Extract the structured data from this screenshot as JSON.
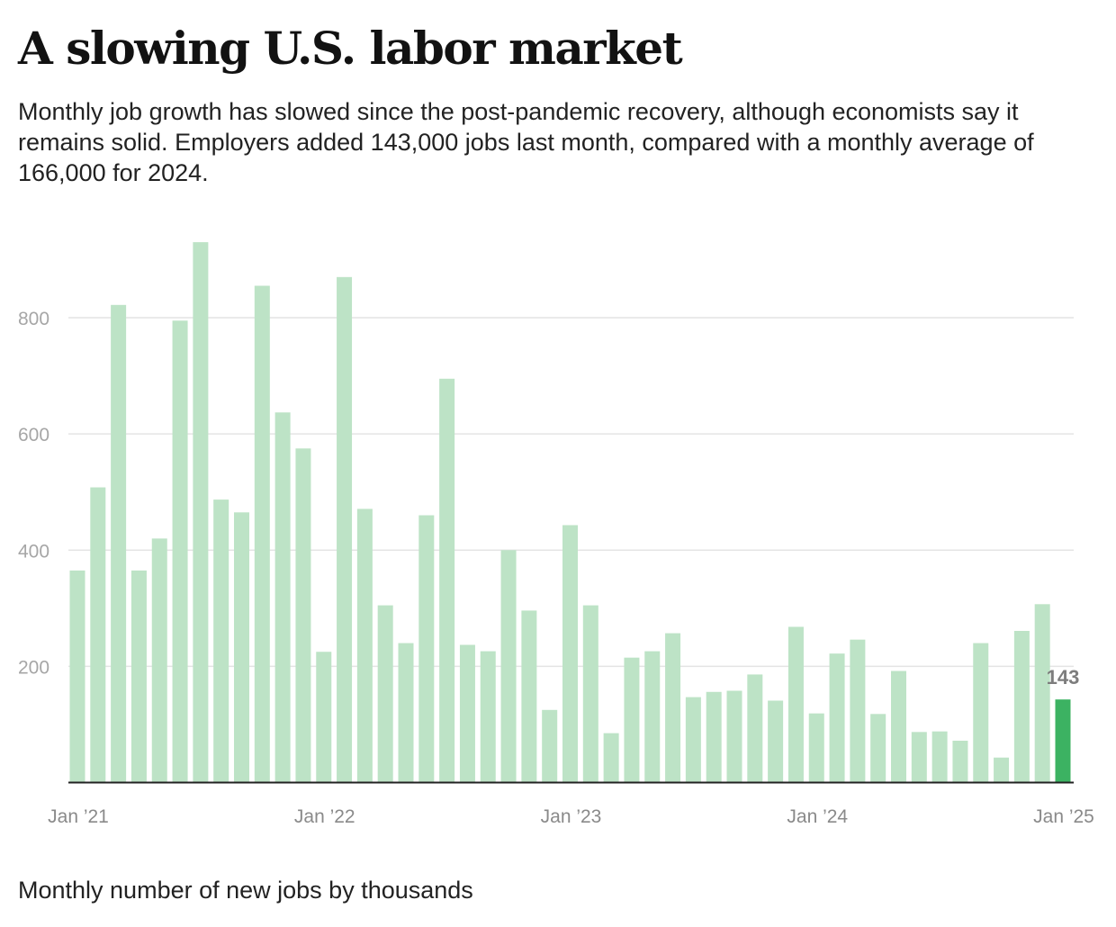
{
  "header": {
    "title": "A slowing U.S. labor market",
    "subtitle": "Monthly job growth has slowed since the post-pandemic recovery, although economists say it remains solid. Employers added 143,000 jobs last month, compared with a monthly average of 166,000 for 2024."
  },
  "footnote": "Monthly number of new jobs by thousands",
  "colors": {
    "bar": "#bde3c6",
    "highlight_bar": "#3cb262",
    "gridline": "#e4e4e4",
    "baseline": "#222222"
  },
  "chart_data": {
    "type": "bar",
    "x": [
      "Jan 2021",
      "Feb 2021",
      "Mar 2021",
      "Apr 2021",
      "May 2021",
      "Jun 2021",
      "Jul 2021",
      "Aug 2021",
      "Sep 2021",
      "Oct 2021",
      "Nov 2021",
      "Dec 2021",
      "Jan 2022",
      "Feb 2022",
      "Mar 2022",
      "Apr 2022",
      "May 2022",
      "Jun 2022",
      "Jul 2022",
      "Aug 2022",
      "Sep 2022",
      "Oct 2022",
      "Nov 2022",
      "Dec 2022",
      "Jan 2023",
      "Feb 2023",
      "Mar 2023",
      "Apr 2023",
      "May 2023",
      "Jun 2023",
      "Jul 2023",
      "Aug 2023",
      "Sep 2023",
      "Oct 2023",
      "Nov 2023",
      "Dec 2023",
      "Jan 2024",
      "Feb 2024",
      "Mar 2024",
      "Apr 2024",
      "May 2024",
      "Jun 2024",
      "Jul 2024",
      "Aug 2024",
      "Sep 2024",
      "Oct 2024",
      "Nov 2024",
      "Dec 2024",
      "Jan 2025"
    ],
    "values": [
      365,
      508,
      822,
      365,
      420,
      795,
      930,
      487,
      465,
      855,
      637,
      575,
      225,
      870,
      471,
      305,
      240,
      460,
      695,
      237,
      226,
      400,
      296,
      125,
      443,
      305,
      85,
      215,
      226,
      257,
      147,
      156,
      158,
      186,
      141,
      268,
      119,
      222,
      246,
      118,
      192,
      87,
      88,
      72,
      240,
      43,
      261,
      307,
      143
    ],
    "highlight_index": 48,
    "data_labels": [
      {
        "index": 48,
        "text": "143"
      }
    ],
    "y_ticks": [
      200,
      400,
      600,
      800
    ],
    "y_tick_labels": [
      "200",
      "400",
      "600",
      "800"
    ],
    "x_ticks": [
      {
        "index": 0,
        "label": "Jan ’21"
      },
      {
        "index": 12,
        "label": "Jan ’22"
      },
      {
        "index": 24,
        "label": "Jan ’23"
      },
      {
        "index": 36,
        "label": "Jan ’24"
      },
      {
        "index": 48,
        "label": "Jan ’25"
      }
    ],
    "ylim": [
      0,
      930
    ],
    "grid": true,
    "legend": "none"
  }
}
